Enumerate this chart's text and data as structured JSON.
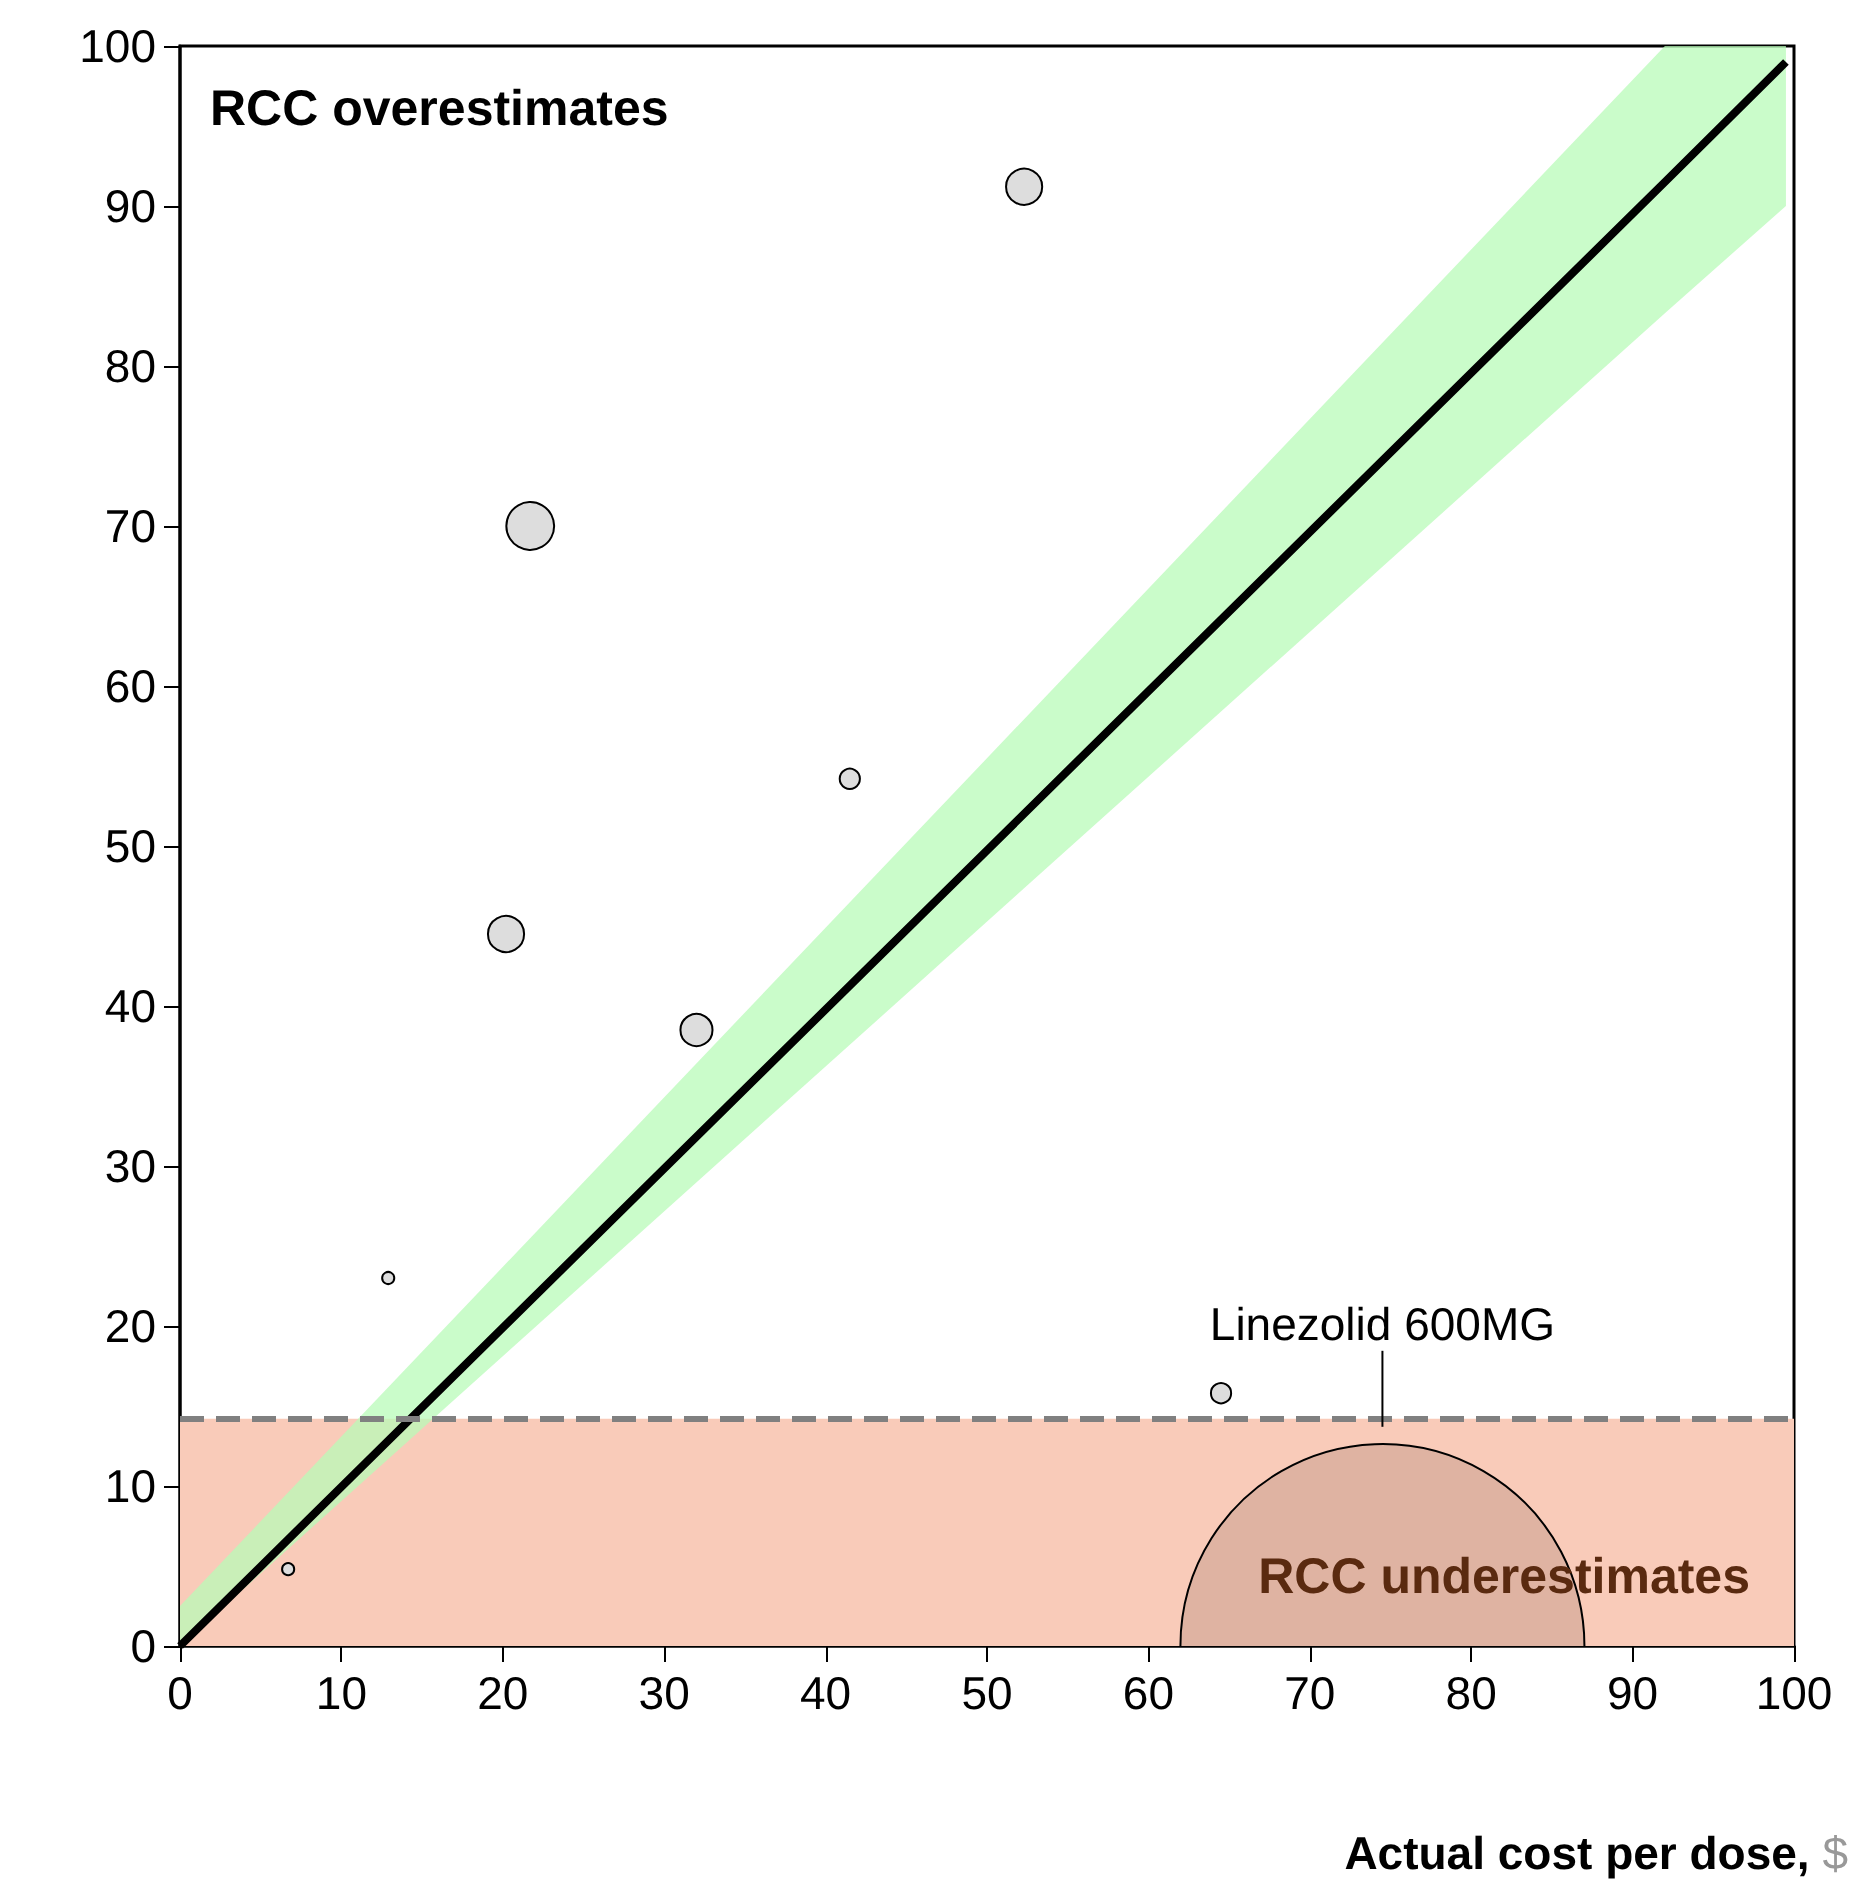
{
  "chart_data": {
    "type": "bubble",
    "xlabel": "Actual cost per dose, $",
    "xlim": [
      0,
      100
    ],
    "xticks": [
      0,
      10,
      20,
      30,
      40,
      50,
      60,
      70,
      80,
      90,
      100
    ],
    "ylim": [
      0,
      100
    ],
    "yticks": [
      0,
      10,
      20,
      30,
      40,
      50,
      60,
      70,
      80,
      90,
      100
    ],
    "grid": false,
    "annotations": [
      "RCC overestimates",
      {
        "text": "Linezolid 600MG",
        "x": 74.5,
        "y": 13.7
      }
    ],
    "bands": [
      {
        "axis": "y",
        "from": 0,
        "to": 14.2,
        "label": "RCC underestimates",
        "color": "#f9cbb9"
      }
    ],
    "ref_lines": [
      {
        "axis": "y",
        "value": 14.2,
        "line_style": "dashed",
        "color": "#808080"
      }
    ],
    "series": [
      {
        "type": "line",
        "color": "#000000",
        "marker": "none",
        "x": [
          0,
          92,
          99.5
        ],
        "values": [
          0,
          91.5,
          99
        ],
        "lower": [
          0,
          83.3,
          90
        ],
        "upper": [
          2.5,
          100,
          100
        ]
      },
      {
        "x": [
          52.3,
          21.7,
          20.2,
          41.5,
          32.0,
          12.9,
          6.7,
          64.5,
          74.5
        ],
        "values": [
          91.2,
          70,
          44.5,
          54.2,
          38.5,
          23.0,
          4.8,
          15.8,
          0
        ],
        "sizes": [
          0.008,
          0.014,
          0.008,
          0.0025,
          0.0063,
          0.0009,
          0.0009,
          0.0025,
          1
        ],
        "colors": [
          "#dddddd",
          "#dddddd",
          "#dddddd",
          "#dddddd",
          "#dddddd",
          "#dddddd",
          "#dddddd",
          "#dddddd",
          "#dfb3a2"
        ]
      }
    ]
  }
}
